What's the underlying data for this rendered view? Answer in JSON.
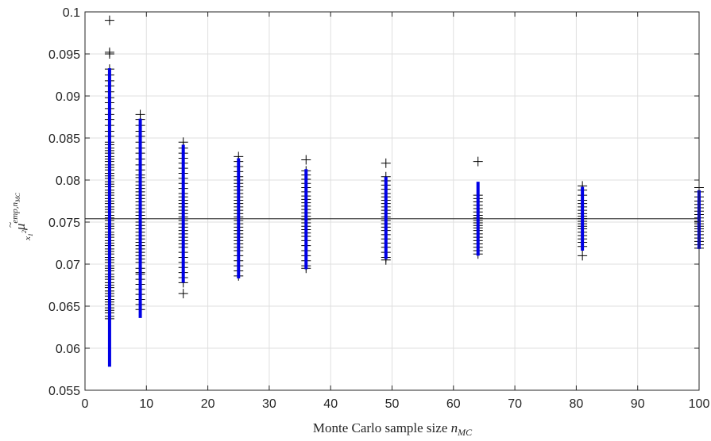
{
  "chart_data": {
    "type": "scatter",
    "xlabel": "Monte Carlo sample size n_MC",
    "xlabel_text": "Monte Carlo sample size ",
    "xlabel_symbol": "n",
    "xlabel_subscript": "MC",
    "ylabel": "μ̃^{emp,n_MC}_{x_1^2}",
    "ylabel_symbol": "μ",
    "ylabel_superscript": "emp,n",
    "ylabel_superscript_sub": "MC",
    "ylabel_subscript": "x",
    "ylabel_subscript_sub": "1",
    "ylabel_subscript_sup": "2",
    "xlim": [
      0,
      100
    ],
    "ylim": [
      0.055,
      0.1
    ],
    "xticks": [
      0,
      10,
      20,
      30,
      40,
      50,
      60,
      70,
      80,
      90,
      100
    ],
    "xtick_labels": [
      "0",
      "10",
      "20",
      "30",
      "40",
      "50",
      "60",
      "70",
      "80",
      "90",
      "100"
    ],
    "yticks": [
      0.055,
      0.06,
      0.065,
      0.07,
      0.075,
      0.08,
      0.085,
      0.09,
      0.095,
      0.1
    ],
    "ytick_labels": [
      "0.055",
      "0.06",
      "0.065",
      "0.07",
      "0.075",
      "0.08",
      "0.085",
      "0.09",
      "0.095",
      "0.1"
    ],
    "grid": true,
    "reference_line": {
      "y": 0.0754,
      "color": "#404040"
    },
    "marker_color": "#000000",
    "interval_color": "#0000e6",
    "groups": [
      {
        "x": 4,
        "interval": [
          0.0578,
          0.0933
        ],
        "points": [
          0.099,
          0.095,
          0.0952,
          0.0932,
          0.0925,
          0.0918,
          0.0912,
          0.0905,
          0.0898,
          0.0892,
          0.0885,
          0.0878,
          0.0872,
          0.0865,
          0.0858,
          0.0852,
          0.0845,
          0.0842,
          0.0838,
          0.0835,
          0.0832,
          0.0828,
          0.0825,
          0.0822,
          0.0818,
          0.0815,
          0.0812,
          0.0808,
          0.0805,
          0.0802,
          0.0798,
          0.0795,
          0.0792,
          0.0788,
          0.0785,
          0.0782,
          0.0778,
          0.0775,
          0.0772,
          0.0768,
          0.0765,
          0.0762,
          0.0758,
          0.0755,
          0.0752,
          0.0748,
          0.0745,
          0.0742,
          0.0738,
          0.0735,
          0.0732,
          0.0728,
          0.0725,
          0.0722,
          0.0718,
          0.0715,
          0.0712,
          0.0708,
          0.0705,
          0.0702,
          0.0698,
          0.0695,
          0.0692,
          0.0688,
          0.0685,
          0.0682,
          0.0678,
          0.0675,
          0.0672,
          0.0668,
          0.0665,
          0.0662,
          0.0658,
          0.0655,
          0.0652,
          0.0648,
          0.0645,
          0.0642,
          0.0638,
          0.0635
        ]
      },
      {
        "x": 9,
        "interval": [
          0.0636,
          0.0873
        ],
        "points": [
          0.0878,
          0.0872,
          0.0865,
          0.0858,
          0.0852,
          0.0845,
          0.0838,
          0.0832,
          0.0825,
          0.0818,
          0.0812,
          0.0806,
          0.0803,
          0.0798,
          0.0794,
          0.079,
          0.0786,
          0.0782,
          0.0778,
          0.0774,
          0.077,
          0.0766,
          0.0762,
          0.0758,
          0.0754,
          0.075,
          0.0746,
          0.0742,
          0.0738,
          0.0734,
          0.073,
          0.0726,
          0.0722,
          0.0718,
          0.0714,
          0.071,
          0.0706,
          0.0702,
          0.0695,
          0.069,
          0.0688,
          0.0682,
          0.0676,
          0.067,
          0.0664,
          0.0658,
          0.0652,
          0.0646
        ]
      },
      {
        "x": 16,
        "interval": [
          0.0678,
          0.0842
        ],
        "points": [
          0.0845,
          0.0838,
          0.0832,
          0.0826,
          0.082,
          0.0814,
          0.0808,
          0.0802,
          0.0796,
          0.079,
          0.0784,
          0.078,
          0.0776,
          0.0772,
          0.0768,
          0.0764,
          0.076,
          0.0756,
          0.0752,
          0.0748,
          0.0744,
          0.074,
          0.0736,
          0.0732,
          0.0728,
          0.0724,
          0.072,
          0.0714,
          0.0708,
          0.0702,
          0.0696,
          0.069,
          0.0684,
          0.0678,
          0.0665
        ]
      },
      {
        "x": 25,
        "interval": [
          0.0683,
          0.0826
        ],
        "points": [
          0.0828,
          0.0822,
          0.0816,
          0.081,
          0.0804,
          0.08,
          0.0796,
          0.0792,
          0.0788,
          0.0784,
          0.078,
          0.0776,
          0.0772,
          0.0768,
          0.0764,
          0.076,
          0.0756,
          0.0752,
          0.0748,
          0.0744,
          0.074,
          0.0736,
          0.0732,
          0.0728,
          0.0724,
          0.072,
          0.0716,
          0.071,
          0.0704,
          0.0698,
          0.0692,
          0.0686
        ]
      },
      {
        "x": 36,
        "interval": [
          0.0694,
          0.0813
        ],
        "points": [
          0.0824,
          0.0811,
          0.0806,
          0.0801,
          0.0796,
          0.0791,
          0.0786,
          0.0781,
          0.0777,
          0.0773,
          0.0769,
          0.0765,
          0.0761,
          0.0757,
          0.0753,
          0.0749,
          0.0745,
          0.0741,
          0.0737,
          0.0733,
          0.0728,
          0.0722,
          0.0716,
          0.071,
          0.0704,
          0.0698,
          0.0695
        ]
      },
      {
        "x": 49,
        "interval": [
          0.0706,
          0.0804
        ],
        "points": [
          0.082,
          0.0804,
          0.0799,
          0.0794,
          0.0789,
          0.0784,
          0.078,
          0.0776,
          0.0772,
          0.0768,
          0.0764,
          0.076,
          0.0756,
          0.0752,
          0.0748,
          0.0744,
          0.074,
          0.0735,
          0.073,
          0.0725,
          0.072,
          0.0714,
          0.0708,
          0.0705
        ]
      },
      {
        "x": 64,
        "interval": [
          0.071,
          0.0798
        ],
        "points": [
          0.0822,
          0.0782,
          0.0778,
          0.0774,
          0.077,
          0.0766,
          0.0762,
          0.0758,
          0.0755,
          0.0752,
          0.0749,
          0.0746,
          0.0743,
          0.074,
          0.0736,
          0.0732,
          0.0728,
          0.0724,
          0.072,
          0.0716,
          0.0712
        ]
      },
      {
        "x": 81,
        "interval": [
          0.0716,
          0.0792
        ],
        "points": [
          0.0793,
          0.0788,
          0.0782,
          0.0776,
          0.0772,
          0.0768,
          0.0764,
          0.076,
          0.0757,
          0.0754,
          0.0751,
          0.0748,
          0.0745,
          0.0742,
          0.0738,
          0.0734,
          0.073,
          0.0726,
          0.0721,
          0.071
        ]
      },
      {
        "x": 100,
        "interval": [
          0.0718,
          0.0788
        ],
        "points": [
          0.0791,
          0.0786,
          0.078,
          0.0775,
          0.0771,
          0.0767,
          0.0763,
          0.0759,
          0.0755,
          0.0751,
          0.0748,
          0.0745,
          0.0742,
          0.0739,
          0.0735,
          0.0731,
          0.0727,
          0.0723,
          0.0719
        ]
      }
    ]
  }
}
